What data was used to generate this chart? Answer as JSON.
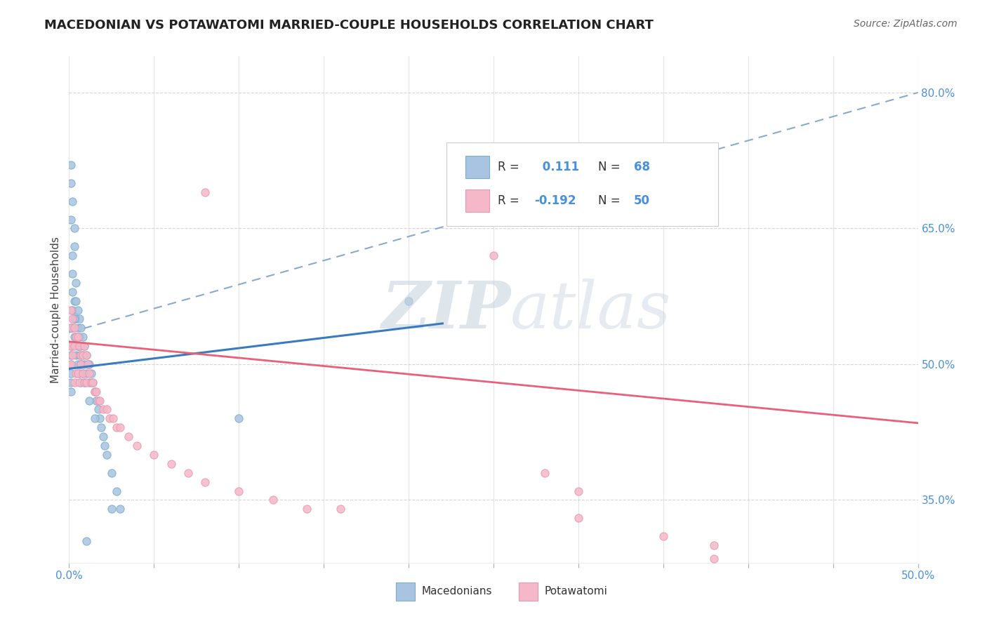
{
  "title": "MACEDONIAN VS POTAWATOMI MARRIED-COUPLE HOUSEHOLDS CORRELATION CHART",
  "source": "Source: ZipAtlas.com",
  "ylabel": "Married-couple Households",
  "xlim": [
    0.0,
    0.5
  ],
  "ylim": [
    0.28,
    0.84
  ],
  "xtick_pos": [
    0.0,
    0.05,
    0.1,
    0.15,
    0.2,
    0.25,
    0.3,
    0.35,
    0.4,
    0.45,
    0.5
  ],
  "ytick_right": [
    0.35,
    0.5,
    0.65,
    0.8
  ],
  "ytick_right_labels": [
    "35.0%",
    "50.0%",
    "65.0%",
    "80.0%"
  ],
  "macedonian_color": "#a8c4e0",
  "macedonian_edge": "#7aaecc",
  "potawatomi_color": "#f5b8c8",
  "potawatomi_edge": "#e898b0",
  "macedonian_line_color": "#3a7bbf",
  "potawatomi_line_color": "#e8607a",
  "dashed_line_color": "#88aacc",
  "tick_color": "#4a90d9",
  "title_color": "#222222",
  "ylabel_color": "#444444",
  "source_color": "#666666",
  "grid_color": "#cccccc",
  "mac_line_x0": 0.0,
  "mac_line_y0": 0.495,
  "mac_line_x1": 0.22,
  "mac_line_y1": 0.545,
  "pot_line_x0": 0.0,
  "pot_line_y0": 0.525,
  "pot_line_x1": 0.5,
  "pot_line_y1": 0.435,
  "dash_line_x0": 0.0,
  "dash_line_y0": 0.535,
  "dash_line_x1": 0.5,
  "dash_line_y1": 0.8,
  "legend_r1": "R = ",
  "legend_v1": " 0.111",
  "legend_n1_label": "N = ",
  "legend_n1_val": "68",
  "legend_r2": "R = ",
  "legend_v2": "-0.192",
  "legend_n2_label": "N = ",
  "legend_n2_val": "50",
  "macedonians_label": "Macedonians",
  "potawatomi_label": "Potawatomi",
  "mac_x": [
    0.001,
    0.001,
    0.001,
    0.001,
    0.001,
    0.001,
    0.001,
    0.002,
    0.002,
    0.002,
    0.002,
    0.002,
    0.002,
    0.003,
    0.003,
    0.003,
    0.003,
    0.003,
    0.004,
    0.004,
    0.004,
    0.004,
    0.004,
    0.005,
    0.005,
    0.005,
    0.005,
    0.006,
    0.006,
    0.006,
    0.006,
    0.007,
    0.007,
    0.007,
    0.007,
    0.008,
    0.008,
    0.008,
    0.009,
    0.009,
    0.01,
    0.01,
    0.011,
    0.012,
    0.012,
    0.013,
    0.014,
    0.015,
    0.016,
    0.017,
    0.018,
    0.019,
    0.02,
    0.021,
    0.022,
    0.025,
    0.028,
    0.03,
    0.012,
    0.015,
    0.009,
    0.007,
    0.005,
    0.003,
    0.002,
    0.001,
    0.001,
    0.001
  ],
  "mac_y": [
    0.54,
    0.52,
    0.51,
    0.5,
    0.49,
    0.48,
    0.47,
    0.62,
    0.6,
    0.58,
    0.56,
    0.54,
    0.52,
    0.65,
    0.63,
    0.57,
    0.55,
    0.53,
    0.59,
    0.57,
    0.55,
    0.53,
    0.51,
    0.56,
    0.54,
    0.52,
    0.5,
    0.55,
    0.53,
    0.51,
    0.49,
    0.54,
    0.52,
    0.5,
    0.48,
    0.53,
    0.51,
    0.49,
    0.52,
    0.5,
    0.51,
    0.49,
    0.5,
    0.5,
    0.48,
    0.49,
    0.48,
    0.47,
    0.46,
    0.45,
    0.44,
    0.43,
    0.42,
    0.41,
    0.4,
    0.38,
    0.36,
    0.34,
    0.46,
    0.44,
    0.48,
    0.5,
    0.52,
    0.55,
    0.68,
    0.72,
    0.7,
    0.66
  ],
  "pot_x": [
    0.001,
    0.001,
    0.001,
    0.001,
    0.002,
    0.002,
    0.003,
    0.003,
    0.003,
    0.004,
    0.004,
    0.005,
    0.005,
    0.006,
    0.006,
    0.007,
    0.007,
    0.008,
    0.008,
    0.009,
    0.009,
    0.01,
    0.01,
    0.011,
    0.012,
    0.013,
    0.014,
    0.015,
    0.016,
    0.017,
    0.018,
    0.02,
    0.022,
    0.024,
    0.026,
    0.028,
    0.03,
    0.035,
    0.04,
    0.05,
    0.06,
    0.07,
    0.08,
    0.1,
    0.12,
    0.14,
    0.16,
    0.3,
    0.35,
    0.38
  ],
  "pot_y": [
    0.56,
    0.54,
    0.52,
    0.5,
    0.55,
    0.51,
    0.54,
    0.52,
    0.48,
    0.53,
    0.49,
    0.53,
    0.49,
    0.52,
    0.48,
    0.51,
    0.5,
    0.51,
    0.49,
    0.52,
    0.48,
    0.51,
    0.48,
    0.5,
    0.49,
    0.48,
    0.48,
    0.47,
    0.47,
    0.46,
    0.46,
    0.45,
    0.45,
    0.44,
    0.44,
    0.43,
    0.43,
    0.42,
    0.41,
    0.4,
    0.39,
    0.38,
    0.37,
    0.36,
    0.35,
    0.34,
    0.34,
    0.33,
    0.31,
    0.3
  ]
}
